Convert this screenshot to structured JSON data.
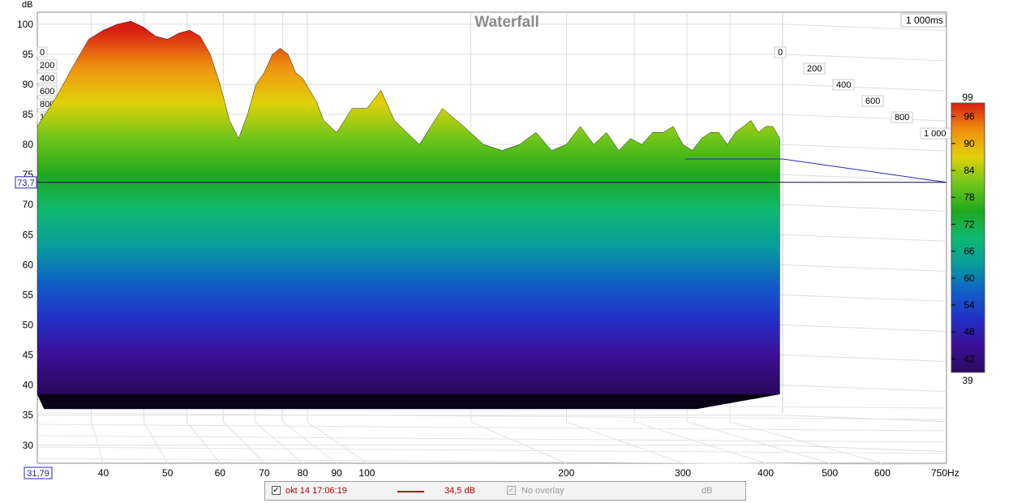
{
  "chart_data": {
    "type": "heatmap",
    "title": "Waterfall",
    "ylabel": "dB",
    "xunit": "Hz",
    "time_window_label": "1 000ms",
    "xlim": [
      31.79,
      750
    ],
    "ylim": [
      27,
      102
    ],
    "xscale": "log",
    "x_ticks": [
      40,
      50,
      60,
      70,
      80,
      90,
      100,
      200,
      300,
      400,
      500,
      600
    ],
    "x_tick_labels": [
      "40",
      "50",
      "60",
      "70",
      "80",
      "90",
      "100",
      "200",
      "300",
      "400",
      "500",
      "600"
    ],
    "x_end_label": "750Hz",
    "x_start_readout": "31,79",
    "y_ticks": [
      30,
      35,
      40,
      45,
      50,
      55,
      60,
      65,
      70,
      75,
      80,
      85,
      90,
      95,
      100
    ],
    "y_tick_labels": [
      "30",
      "35",
      "40",
      "45",
      "50",
      "55",
      "60",
      "65",
      "70",
      "75",
      "80",
      "85",
      "90",
      "95",
      "100"
    ],
    "cursor_y_value": 73.7,
    "cursor_y_readout": "73,7",
    "time_ms_ticks": [
      0,
      200,
      400,
      600,
      800,
      1000
    ],
    "time_ms_labels": [
      "0",
      "200",
      "400",
      "600",
      "800",
      "1 000"
    ],
    "time_slices": 40,
    "front_response": {
      "freq_hz": [
        31.79,
        34,
        36,
        38,
        40,
        42,
        44,
        46,
        48,
        50,
        52,
        54,
        56,
        58,
        60,
        62,
        64,
        66,
        68,
        70,
        72,
        74,
        76,
        78,
        80,
        82,
        84,
        86,
        90,
        95,
        100,
        105,
        110,
        120,
        130,
        140,
        150,
        160,
        170,
        180,
        190,
        200,
        210,
        220,
        230,
        240,
        250,
        260,
        270,
        280,
        290,
        300,
        310,
        320,
        330,
        340,
        350,
        360,
        370,
        380,
        390,
        400,
        410,
        420
      ],
      "db": [
        83,
        88,
        93,
        97.5,
        99,
        100,
        100.5,
        99.5,
        98,
        97.5,
        98.5,
        99,
        98,
        95,
        90,
        84,
        81,
        85,
        90,
        92,
        95,
        96,
        95,
        92,
        91,
        89,
        87,
        84,
        82,
        86,
        86,
        89,
        84,
        80,
        86,
        83,
        80,
        79,
        80,
        82,
        79,
        80,
        83,
        80,
        82,
        79,
        81,
        80,
        82,
        82,
        83,
        80,
        79,
        81,
        82,
        82,
        80,
        82,
        83,
        84,
        82,
        83,
        83,
        81
      ]
    },
    "floor_db": 39,
    "color_scale": {
      "min": 39,
      "max": 99,
      "min_label": "39",
      "max_label": "99",
      "ticks": [
        42,
        48,
        54,
        60,
        66,
        72,
        78,
        84,
        90,
        96
      ],
      "tick_labels": [
        "42",
        "48",
        "54",
        "60",
        "66",
        "72",
        "78",
        "84",
        "90",
        "96"
      ],
      "colors": [
        "#2a0a5e",
        "#3c0f96",
        "#2230c8",
        "#1060c8",
        "#089c9c",
        "#10b872",
        "#1fa81e",
        "#70c61a",
        "#e0d10a",
        "#f09010",
        "#d81e12"
      ]
    }
  },
  "legend": {
    "trace_label": "okt 14 17:06:19",
    "trace_value": "34,5 dB",
    "trace_color": "#b00000",
    "overlay_label": "No overlay",
    "overlay_unit": "dB"
  }
}
